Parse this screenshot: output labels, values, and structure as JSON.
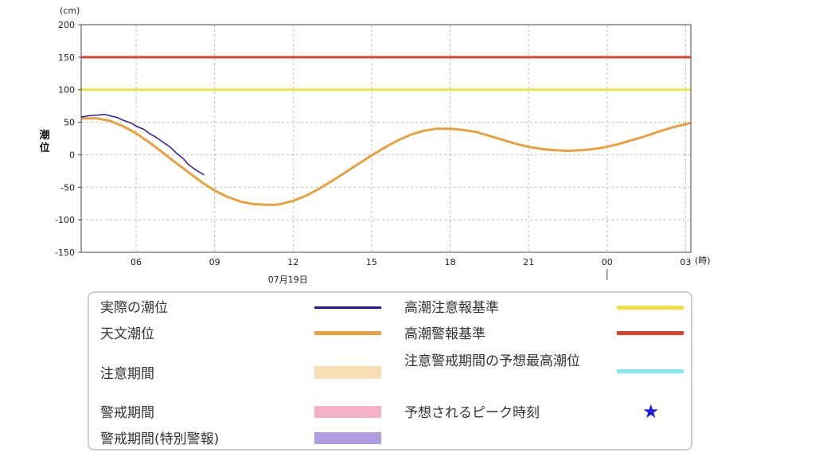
{
  "chart_data": {
    "type": "line",
    "y_unit": "(cm)",
    "x_unit": "(時)",
    "ylabel": "潮位",
    "date_label": "07月19日",
    "ylim": [
      -150,
      200
    ],
    "y_ticks": [
      200,
      150,
      100,
      50,
      0,
      -50,
      -100,
      -150
    ],
    "x_range_hours": [
      3.9,
      27.2
    ],
    "x_ticks": [
      {
        "hour": 6,
        "label": "06"
      },
      {
        "hour": 9,
        "label": "09"
      },
      {
        "hour": 12,
        "label": "12"
      },
      {
        "hour": 15,
        "label": "15"
      },
      {
        "hour": 18,
        "label": "18"
      },
      {
        "hour": 21,
        "label": "21"
      },
      {
        "hour": 24,
        "label": "00"
      },
      {
        "hour": 27,
        "label": "03"
      }
    ],
    "grid": true,
    "thresholds": [
      {
        "name": "高潮警報基準",
        "value": 150,
        "color": "#d9452b"
      },
      {
        "name": "高潮注意報基準",
        "value": 100,
        "color": "#f0e040"
      }
    ],
    "series": [
      {
        "name": "天文潮位",
        "color": "#e8a040",
        "x": [
          3.9,
          4.5,
          5.0,
          5.5,
          6.0,
          6.5,
          7.0,
          7.5,
          8.0,
          8.5,
          9.0,
          9.5,
          10.0,
          10.5,
          11.0,
          11.3,
          11.5,
          12.0,
          12.5,
          13.0,
          13.5,
          14.0,
          14.5,
          15.0,
          15.5,
          16.0,
          16.5,
          17.0,
          17.5,
          18.0,
          18.3,
          18.5,
          19.0,
          19.5,
          20.0,
          20.5,
          21.0,
          21.5,
          22.0,
          22.5,
          23.0,
          23.3,
          23.5,
          24.0,
          24.5,
          25.0,
          25.5,
          26.0,
          26.5,
          27.0,
          27.2
        ],
        "values": [
          56,
          56,
          52,
          44,
          33,
          19,
          4,
          -12,
          -27,
          -42,
          -55,
          -65,
          -72,
          -76,
          -77,
          -77,
          -76,
          -71,
          -63,
          -52,
          -40,
          -27,
          -14,
          -1,
          11,
          22,
          31,
          37,
          40,
          40,
          39,
          38,
          35,
          29,
          23,
          17,
          12,
          9,
          7,
          6,
          7,
          8,
          9,
          12,
          17,
          23,
          29,
          36,
          42,
          47,
          49
        ]
      },
      {
        "name": "実際の潮位",
        "color": "#2a1a9a",
        "x": [
          3.9,
          4.2,
          4.5,
          4.8,
          5.0,
          5.3,
          5.5,
          5.8,
          6.0,
          6.3,
          6.5,
          6.8,
          7.0,
          7.3,
          7.5,
          7.8,
          8.0,
          8.3,
          8.6
        ],
        "values": [
          58,
          60,
          61,
          62,
          60,
          57,
          53,
          49,
          44,
          39,
          33,
          26,
          20,
          12,
          4,
          -6,
          -15,
          -24,
          -31
        ]
      }
    ]
  },
  "legend": {
    "items": [
      {
        "label": "実際の潮位",
        "color": "#2a1a9a",
        "kind": "line"
      },
      {
        "label": "天文潮位",
        "color": "#e8a040",
        "kind": "line"
      },
      {
        "label": "注意期間",
        "color": "#f8dcb4",
        "kind": "box"
      },
      {
        "label": "警戒期間",
        "color": "#f4b0c8",
        "kind": "box"
      },
      {
        "label": "警戒期間(特別警報)",
        "color": "#b09ce0",
        "kind": "box"
      },
      {
        "label": "高潮注意報基準",
        "color": "#f0e040",
        "kind": "line"
      },
      {
        "label": "高潮警報基準",
        "color": "#d9452b",
        "kind": "line"
      },
      {
        "label": "注意警戒期間の予想最高潮位",
        "color": "#7eeaf0",
        "kind": "line"
      },
      {
        "label": "予想されるピーク時刻",
        "color": "#1a1ae0",
        "kind": "star",
        "glyph": "★"
      }
    ]
  }
}
